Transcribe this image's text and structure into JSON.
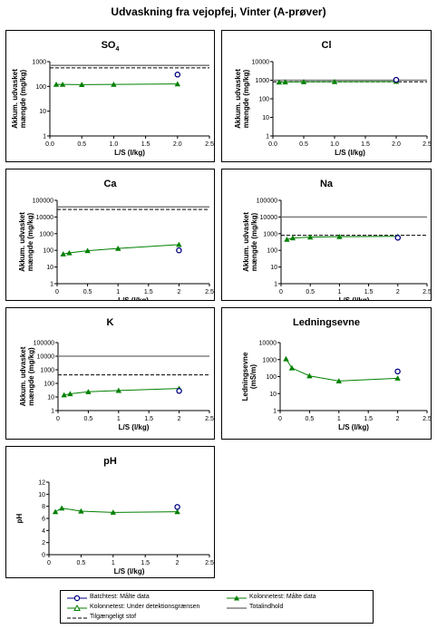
{
  "title": "Udvaskning fra vejopfej, Vinter (A-prøver)",
  "colors": {
    "kolonne": "#008000",
    "batch": "#000080",
    "total": "#808080",
    "tilgaengelig": "#000000"
  },
  "legend": {
    "batch": "Batchtest: Målte data",
    "kolonne_maalte": "Kolonnetest: Målte data",
    "kolonne_under": "Kolonnetest: Under detektionsgrænsen",
    "total": "Totalindhold",
    "tilgaengeligt": "Tilgængeligt stof"
  },
  "chart_data": [
    {
      "id": "so4",
      "type": "line",
      "title": "SO4",
      "title_sub": "4",
      "title_main": "SO",
      "ylabel": "Akkum. udvasket mængde (mg/kg)",
      "xlabel": "L/S (l/kg)",
      "yscale": "log",
      "ylim": [
        1,
        1000
      ],
      "xlim": [
        0,
        2.5
      ],
      "xticks": [
        "0.0",
        "0.5",
        "1.0",
        "1.5",
        "2.0",
        "2.5"
      ],
      "yticks": [
        "1",
        "10",
        "100",
        "1000"
      ],
      "kolonne": {
        "x": [
          0.1,
          0.2,
          0.5,
          1.0,
          2.0
        ],
        "y": [
          120,
          120,
          118,
          120,
          125
        ]
      },
      "batch": {
        "x": [
          2.0
        ],
        "y": [
          300
        ]
      },
      "total": 700,
      "tilgaengeligt": 560
    },
    {
      "id": "cl",
      "type": "line",
      "title": "Cl",
      "ylabel": "Akkum. udvasket mængde (mg/kg)",
      "xlabel": "L/S (l/kg)",
      "yscale": "log",
      "ylim": [
        1,
        10000
      ],
      "xlim": [
        0,
        2.5
      ],
      "xticks": [
        "0.0",
        "0.5",
        "1.0",
        "1.5",
        "2.0",
        "2.5"
      ],
      "yticks": [
        "1",
        "10",
        "100",
        "1000",
        "10000"
      ],
      "kolonne": {
        "x": [
          0.1,
          0.2,
          0.5,
          1.0,
          2.0
        ],
        "y": [
          780,
          800,
          820,
          830,
          850
        ]
      },
      "batch": {
        "x": [
          2.0
        ],
        "y": [
          1050
        ]
      },
      "total": 1000,
      "tilgaengeligt": 820
    },
    {
      "id": "ca",
      "type": "line",
      "title": "Ca",
      "ylabel": "Akkum. udvasket mængde (mg/kg)",
      "xlabel": "L/S (l/kg)",
      "yscale": "log",
      "ylim": [
        1,
        100000
      ],
      "xlim": [
        0,
        2.5
      ],
      "xticks": [
        "0",
        "0.5",
        "1",
        "1.5",
        "2",
        "2.5"
      ],
      "yticks": [
        "1",
        "10",
        "100",
        "1000",
        "10000",
        "100000"
      ],
      "kolonne": {
        "x": [
          0.1,
          0.2,
          0.5,
          1.0,
          2.0
        ],
        "y": [
          60,
          70,
          95,
          130,
          220
        ]
      },
      "batch": {
        "x": [
          2.0
        ],
        "y": [
          100
        ]
      },
      "total": 40000,
      "tilgaengeligt": 28000
    },
    {
      "id": "na",
      "type": "line",
      "title": "Na",
      "ylabel": "Akkum. udvasket mængde (mg/kg)",
      "xlabel": "L/S (l/kg)",
      "yscale": "log",
      "ylim": [
        1,
        100000
      ],
      "xlim": [
        0,
        2.5
      ],
      "xticks": [
        "0",
        "0.5",
        "1",
        "1.5",
        "2",
        "2.5"
      ],
      "yticks": [
        "1",
        "10",
        "100",
        "1000",
        "10000",
        "100000"
      ],
      "kolonne": {
        "x": [
          0.1,
          0.2,
          0.5,
          1.0,
          2.0
        ],
        "y": [
          450,
          550,
          620,
          660,
          690
        ]
      },
      "batch": {
        "x": [
          2.0
        ],
        "y": [
          570
        ]
      },
      "total": 10000,
      "tilgaengeligt": 800
    },
    {
      "id": "k",
      "type": "line",
      "title": "K",
      "ylabel": "Akkum. udvasket mængde (mg/kg)",
      "xlabel": "L/S (l/kg)",
      "yscale": "log",
      "ylim": [
        1,
        100000
      ],
      "xlim": [
        0,
        2.5
      ],
      "xticks": [
        "0",
        "0.5",
        "1",
        "1.5",
        "2",
        "2.5"
      ],
      "yticks": [
        "1",
        "10",
        "100",
        "1000",
        "10000",
        "100000"
      ],
      "kolonne": {
        "x": [
          0.1,
          0.2,
          0.5,
          1.0,
          2.0
        ],
        "y": [
          14,
          17,
          24,
          30,
          42
        ]
      },
      "batch": {
        "x": [
          2.0
        ],
        "y": [
          28
        ]
      },
      "total": 10000,
      "tilgaengeligt": 420
    },
    {
      "id": "ledningsevne",
      "type": "line",
      "title": "Ledningsevne",
      "ylabel": "Ledningsevne (mS/m)",
      "xlabel": "L/S (l/kg)",
      "yscale": "log",
      "ylim": [
        1,
        10000
      ],
      "xlim": [
        0,
        2.5
      ],
      "xticks": [
        "0",
        "0.5",
        "1",
        "1.5",
        "2",
        "2.5"
      ],
      "yticks": [
        "1",
        "10",
        "100",
        "1000",
        "10000"
      ],
      "kolonne": {
        "x": [
          0.1,
          0.2,
          0.5,
          1.0,
          2.0
        ],
        "y": [
          1100,
          320,
          110,
          55,
          80
        ]
      },
      "batch": {
        "x": [
          2.0
        ],
        "y": [
          200
        ]
      },
      "total": null,
      "tilgaengeligt": null
    },
    {
      "id": "ph",
      "type": "line",
      "title": "pH",
      "ylabel": "pH",
      "xlabel": "L/S (l/kg)",
      "yscale": "linear",
      "ylim": [
        0,
        12
      ],
      "xlim": [
        0,
        2.5
      ],
      "xticks": [
        "0",
        "0.5",
        "1",
        "1.5",
        "2",
        "2.5"
      ],
      "yticks": [
        "0",
        "2",
        "4",
        "6",
        "8",
        "10",
        "12"
      ],
      "kolonne": {
        "x": [
          0.1,
          0.2,
          0.5,
          1.0,
          2.0
        ],
        "y": [
          7.1,
          7.7,
          7.2,
          7.0,
          7.1
        ]
      },
      "batch": {
        "x": [
          2.0
        ],
        "y": [
          7.9
        ]
      },
      "total": null,
      "tilgaengeligt": null
    }
  ]
}
